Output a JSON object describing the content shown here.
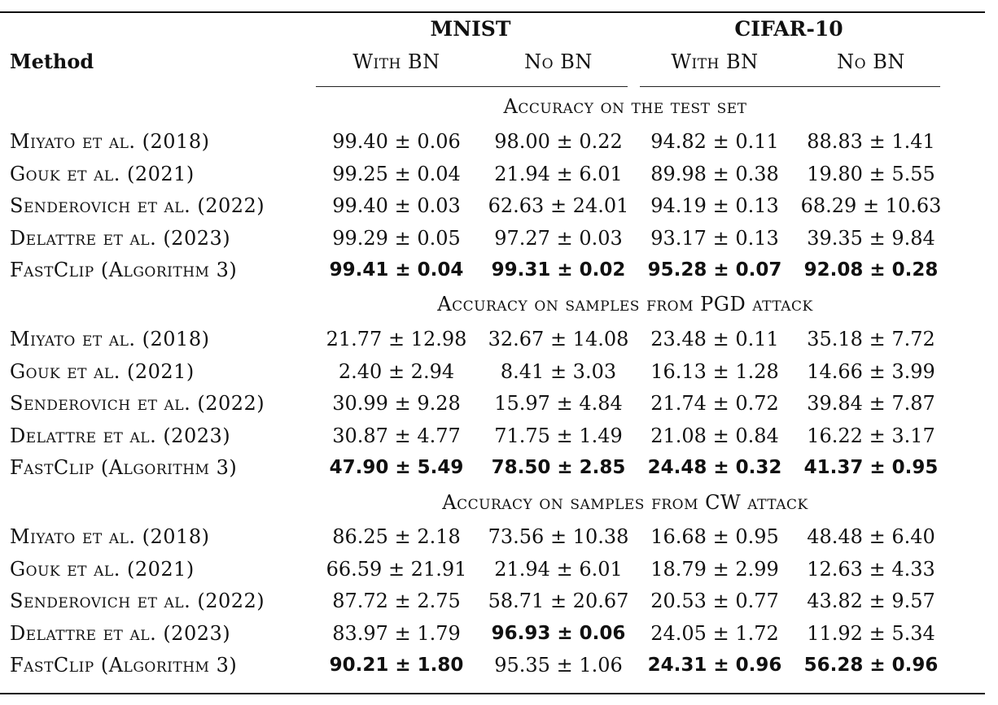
{
  "columns": {
    "method_header": "Method",
    "groups": [
      {
        "name": "MNIST",
        "subcols": [
          "With BN",
          "No BN"
        ]
      },
      {
        "name": "CIFAR-10",
        "subcols": [
          "With BN",
          "No BN"
        ]
      }
    ]
  },
  "sections": [
    {
      "title": "Accuracy on the test set",
      "rows": [
        {
          "method": "Miyato et al. (2018)",
          "cells": [
            "99.40 ± 0.06",
            "98.00 ± 0.22",
            "94.82 ± 0.11",
            "88.83 ± 1.41"
          ],
          "bold": [
            false,
            false,
            false,
            false
          ]
        },
        {
          "method": "Gouk et al. (2021)",
          "cells": [
            "99.25 ± 0.04",
            "21.94 ± 6.01",
            "89.98 ± 0.38",
            "19.80 ± 5.55"
          ],
          "bold": [
            false,
            false,
            false,
            false
          ]
        },
        {
          "method": "Senderovich et al. (2022)",
          "cells": [
            "99.40 ± 0.03",
            "62.63 ± 24.01",
            "94.19 ± 0.13",
            "68.29 ± 10.63"
          ],
          "bold": [
            false,
            false,
            false,
            false
          ]
        },
        {
          "method": "Delattre et al. (2023)",
          "cells": [
            "99.29 ± 0.05",
            "97.27 ± 0.03",
            "93.17 ± 0.13",
            "39.35 ± 9.84"
          ],
          "bold": [
            false,
            false,
            false,
            false
          ]
        },
        {
          "method": "FastClip (Algorithm 3)",
          "cells": [
            "99.41 ± 0.04",
            "99.31 ± 0.02",
            "95.28 ± 0.07",
            "92.08 ± 0.28"
          ],
          "bold": [
            true,
            true,
            true,
            true
          ]
        }
      ]
    },
    {
      "title": "Accuracy on samples from PGD attack",
      "rows": [
        {
          "method": "Miyato et al. (2018)",
          "cells": [
            "21.77 ± 12.98",
            "32.67 ± 14.08",
            "23.48 ± 0.11",
            "35.18 ± 7.72"
          ],
          "bold": [
            false,
            false,
            false,
            false
          ]
        },
        {
          "method": "Gouk et al. (2021)",
          "cells": [
            "2.40 ± 2.94",
            "8.41 ± 3.03",
            "16.13 ± 1.28",
            "14.66 ± 3.99"
          ],
          "bold": [
            false,
            false,
            false,
            false
          ]
        },
        {
          "method": "Senderovich et al. (2022)",
          "cells": [
            "30.99 ± 9.28",
            "15.97 ± 4.84",
            "21.74 ± 0.72",
            "39.84 ± 7.87"
          ],
          "bold": [
            false,
            false,
            false,
            false
          ]
        },
        {
          "method": "Delattre et al. (2023)",
          "cells": [
            "30.87 ± 4.77",
            "71.75 ± 1.49",
            "21.08 ± 0.84",
            "16.22 ± 3.17"
          ],
          "bold": [
            false,
            false,
            false,
            false
          ]
        },
        {
          "method": "FastClip (Algorithm 3)",
          "cells": [
            "47.90 ± 5.49",
            "78.50 ± 2.85",
            "24.48 ± 0.32",
            "41.37 ± 0.95"
          ],
          "bold": [
            true,
            true,
            true,
            true
          ]
        }
      ]
    },
    {
      "title": "Accuracy on samples from CW attack",
      "rows": [
        {
          "method": "Miyato et al. (2018)",
          "cells": [
            "86.25 ± 2.18",
            "73.56 ± 10.38",
            "16.68 ± 0.95",
            "48.48 ± 6.40"
          ],
          "bold": [
            false,
            false,
            false,
            false
          ]
        },
        {
          "method": "Gouk et al. (2021)",
          "cells": [
            "66.59 ± 21.91",
            "21.94 ± 6.01",
            "18.79 ± 2.99",
            "12.63 ± 4.33"
          ],
          "bold": [
            false,
            false,
            false,
            false
          ]
        },
        {
          "method": "Senderovich et al. (2022)",
          "cells": [
            "87.72 ± 2.75",
            "58.71 ± 20.67",
            "20.53 ± 0.77",
            "43.82 ± 9.57"
          ],
          "bold": [
            false,
            false,
            false,
            false
          ]
        },
        {
          "method": "Delattre et al. (2023)",
          "cells": [
            "83.97 ± 1.79",
            "96.93 ± 0.06",
            "24.05 ± 1.72",
            "11.92 ± 5.34"
          ],
          "bold": [
            false,
            true,
            false,
            false
          ]
        },
        {
          "method": "FastClip (Algorithm 3)",
          "cells": [
            "90.21 ± 1.80",
            "95.35 ± 1.06",
            "24.31 ± 0.96",
            "56.28 ± 0.96"
          ],
          "bold": [
            true,
            false,
            true,
            true
          ]
        }
      ]
    }
  ]
}
